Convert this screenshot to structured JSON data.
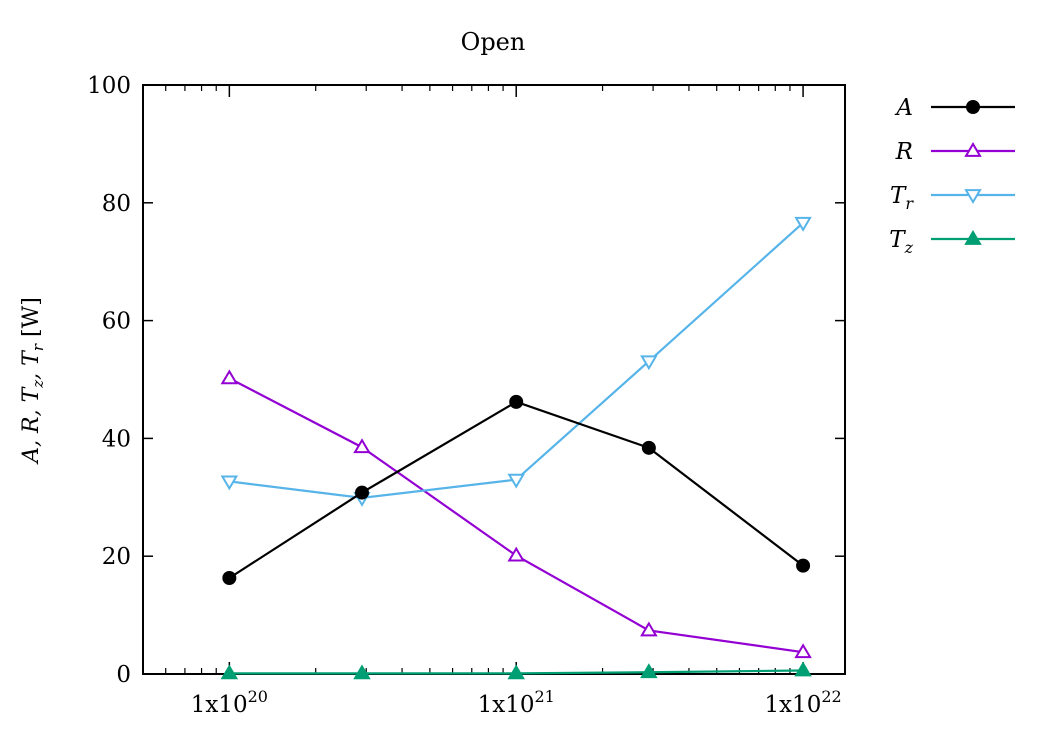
{
  "chart_data": {
    "type": "line",
    "title": "Open",
    "ylabel": "A, R, T_z, T_r [W]",
    "xlabel": "",
    "xscale": "log",
    "xlim": [
      5e+19,
      1.4e+22
    ],
    "ylim": [
      0,
      100
    ],
    "grid": false,
    "legend_position": "outside-right",
    "x": [
      1e+20,
      2.9e+20,
      1e+21,
      2.9e+21,
      1e+22
    ],
    "x_tick_labels": [
      "1x10",
      "1x10",
      "1x10"
    ],
    "x_tick_exponents": [
      "20",
      "21",
      "22"
    ],
    "y_ticks": [
      0,
      20,
      40,
      60,
      80,
      100
    ],
    "y_tick_labels": [
      "0",
      "20",
      "40",
      "60",
      "80",
      "100"
    ],
    "series": [
      {
        "name": "A",
        "symbol": "A",
        "subscript": "",
        "marker": "circle",
        "color": "#000000",
        "values": [
          16.3,
          30.8,
          46.2,
          38.4,
          18.4
        ]
      },
      {
        "name": "R",
        "symbol": "R",
        "subscript": "",
        "marker": "triangle-up-open",
        "color": "#9400d3",
        "values": [
          50.2,
          38.5,
          20.1,
          7.4,
          3.7
        ]
      },
      {
        "name": "T_r",
        "symbol": "T",
        "subscript": "r",
        "marker": "triangle-down-open",
        "color": "#56b4e9",
        "values": [
          32.7,
          29.9,
          33.0,
          53.1,
          76.6
        ]
      },
      {
        "name": "T_z",
        "symbol": "T",
        "subscript": "z",
        "marker": "triangle-up-filled",
        "color": "#009e73",
        "values": [
          0.1,
          0.1,
          0.1,
          0.3,
          0.6
        ]
      }
    ]
  }
}
